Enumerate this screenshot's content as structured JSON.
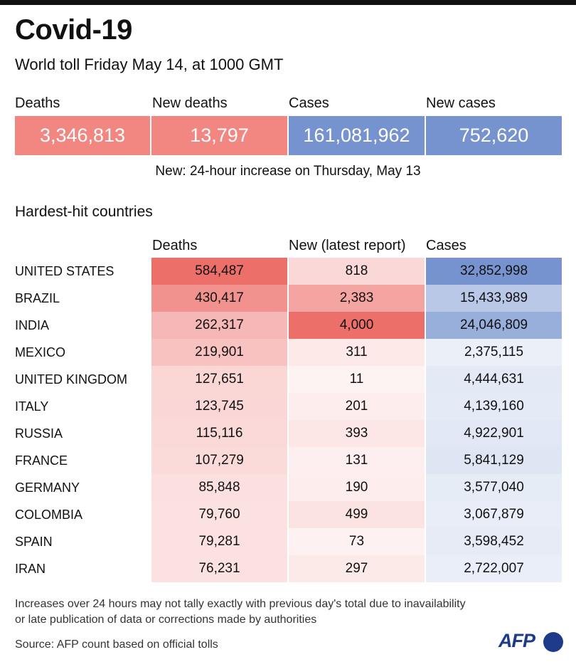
{
  "title": "Covid-19",
  "subtitle": "World toll Friday May 14, at 1000 GMT",
  "summary": [
    {
      "label": "Deaths",
      "value": "3,346,813",
      "color": "#f28782"
    },
    {
      "label": "New deaths",
      "value": "13,797",
      "color": "#f28782"
    },
    {
      "label": "Cases",
      "value": "161,081,962",
      "color": "#7693cf"
    },
    {
      "label": "New cases",
      "value": "752,620",
      "color": "#7693cf"
    }
  ],
  "note": "New: 24-hour increase on Thursday, May 13",
  "section_title": "Hardest-hit countries",
  "chart_data": {
    "type": "table",
    "columns": [
      "Deaths",
      "New (latest report)",
      "Cases"
    ],
    "rows": [
      {
        "country": "UNITED STATES",
        "deaths": "584,487",
        "new": "818",
        "cases": "32,852,998",
        "deaths_v": 584487,
        "new_v": 818,
        "cases_v": 32852998
      },
      {
        "country": "BRAZIL",
        "deaths": "430,417",
        "new": "2,383",
        "cases": "15,433,989",
        "deaths_v": 430417,
        "new_v": 2383,
        "cases_v": 15433989
      },
      {
        "country": "INDIA",
        "deaths": "262,317",
        "new": "4,000",
        "cases": "24,046,809",
        "deaths_v": 262317,
        "new_v": 4000,
        "cases_v": 24046809
      },
      {
        "country": "MEXICO",
        "deaths": "219,901",
        "new": "311",
        "cases": "2,375,115",
        "deaths_v": 219901,
        "new_v": 311,
        "cases_v": 2375115
      },
      {
        "country": "UNITED KINGDOM",
        "deaths": "127,651",
        "new": "11",
        "cases": "4,444,631",
        "deaths_v": 127651,
        "new_v": 11,
        "cases_v": 4444631
      },
      {
        "country": "ITALY",
        "deaths": "123,745",
        "new": "201",
        "cases": "4,139,160",
        "deaths_v": 123745,
        "new_v": 201,
        "cases_v": 4139160
      },
      {
        "country": "RUSSIA",
        "deaths": "115,116",
        "new": "393",
        "cases": "4,922,901",
        "deaths_v": 115116,
        "new_v": 393,
        "cases_v": 4922901
      },
      {
        "country": "FRANCE",
        "deaths": "107,279",
        "new": "131",
        "cases": "5,841,129",
        "deaths_v": 107279,
        "new_v": 131,
        "cases_v": 5841129
      },
      {
        "country": "GERMANY",
        "deaths": "85,848",
        "new": "190",
        "cases": "3,577,040",
        "deaths_v": 85848,
        "new_v": 190,
        "cases_v": 3577040
      },
      {
        "country": "COLOMBIA",
        "deaths": "79,760",
        "new": "499",
        "cases": "3,067,879",
        "deaths_v": 79760,
        "new_v": 499,
        "cases_v": 3067879
      },
      {
        "country": "SPAIN",
        "deaths": "79,281",
        "new": "73",
        "cases": "3,598,452",
        "deaths_v": 79281,
        "new_v": 73,
        "cases_v": 3598452
      },
      {
        "country": "IRAN",
        "deaths": "76,231",
        "new": "297",
        "cases": "2,722,007",
        "deaths_v": 76231,
        "new_v": 297,
        "cases_v": 2722007
      }
    ],
    "colors": {
      "red": "#ed6f6a",
      "blue": "#7693cf"
    }
  },
  "footnote": [
    "Increases over 24 hours may not tally exactly with previous day's total due to inavailability",
    "or late publication of data or corrections made by authorities"
  ],
  "source": "Source: AFP count based on official tolls",
  "logo": "AFP"
}
